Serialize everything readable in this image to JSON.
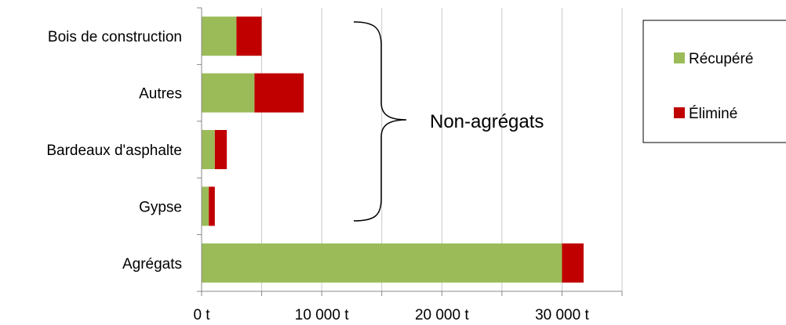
{
  "chart_data": {
    "type": "bar",
    "orientation": "horizontal",
    "stacked": true,
    "categories": [
      "Bois de construction",
      "Autres",
      "Bardeaux d'asphalte",
      "Gypse",
      "Agrégats"
    ],
    "series": [
      {
        "name": "Récupéré",
        "color": "#9BBB59",
        "values": [
          2900,
          4400,
          1100,
          600,
          30000
        ]
      },
      {
        "name": "Éliminé",
        "color": "#C00000",
        "values": [
          2100,
          4100,
          1000,
          500,
          1800
        ]
      }
    ],
    "x_ticks": [
      "0 t",
      "10 000 t",
      "20 000 t",
      "30 000 t"
    ],
    "xlim": [
      0,
      35000
    ],
    "grid": "vertical",
    "legend_position": "right",
    "annotation": "Non-agrégats"
  },
  "legend": {
    "items": [
      {
        "label": "Récupéré",
        "color": "#9BBB59"
      },
      {
        "label": "Éliminé",
        "color": "#C00000"
      }
    ]
  }
}
